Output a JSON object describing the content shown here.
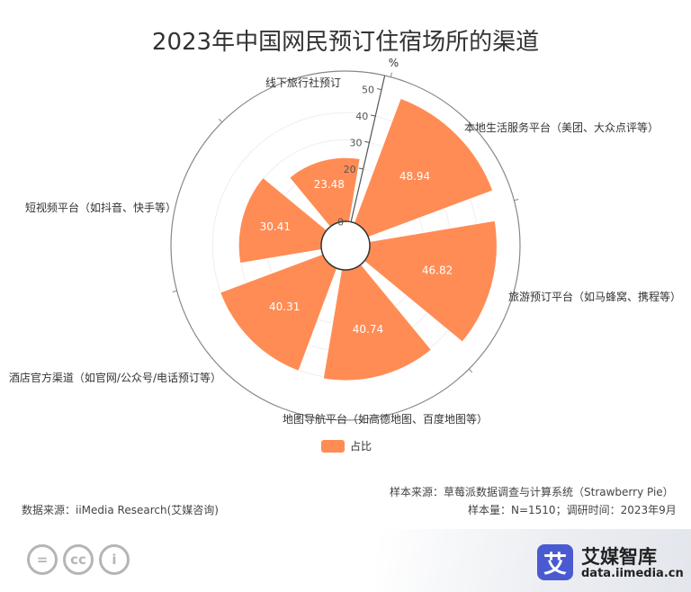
{
  "chart_data": {
    "type": "polar-bar",
    "title": "2023年中国网民预订住宿场所的渠道",
    "unit_label": "%",
    "radial_ticks": [
      "0",
      "20",
      "30",
      "40",
      "50"
    ],
    "radial_max": 50,
    "categories": [
      "本地生活服务平台（美团、大众点评等）",
      "旅游预订平台（如马蜂窝、携程等）",
      "地图导航平台（如高德地图、百度地图等）",
      "酒店官方渠道（如官网/公众号/电话预订等）",
      "短视频平台（如抖音、快手等）",
      "线下旅行社预订"
    ],
    "series": [
      {
        "name": "占比",
        "values": [
          48.94,
          46.82,
          40.74,
          40.31,
          30.41,
          23.48
        ]
      }
    ],
    "value_labels": [
      "48.94",
      "46.82",
      "40.74",
      "40.31",
      "30.41",
      "23.48"
    ],
    "color": "#ff8c55"
  },
  "legend": {
    "label": "占比"
  },
  "footer": {
    "source": "数据来源：iiMedia Research(艾媒咨询)",
    "sample_source": "样本来源：草莓派数据调查与计算系统（Strawberry Pie）",
    "sample_size": "样本量：N=1510；调研时间：2023年9月"
  },
  "brand": {
    "logo_char": "艾",
    "name": "艾媒智库",
    "url": "data.iimedia.cn"
  },
  "license_icons": [
    "=",
    "cc",
    "i"
  ]
}
